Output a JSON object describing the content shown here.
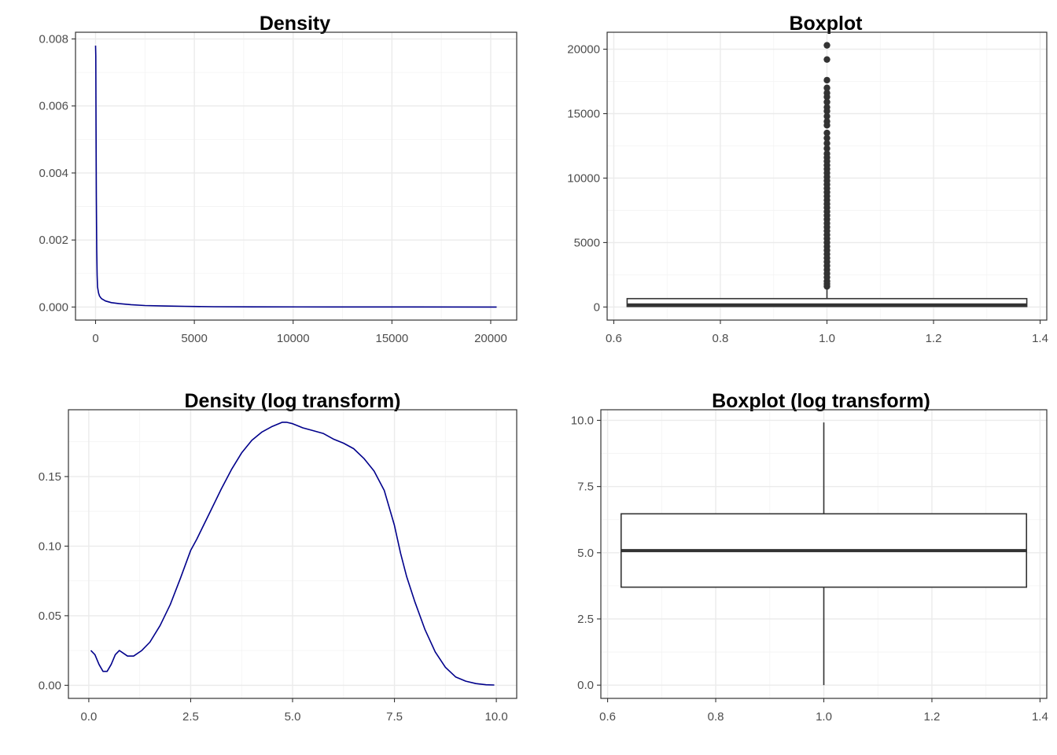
{
  "chart_data": [
    {
      "id": "density",
      "type": "line",
      "title": "Density",
      "xlabel": "",
      "ylabel": "",
      "xlim": [
        -1015,
        21315
      ],
      "ylim": [
        -0.00039,
        0.0082
      ],
      "xticks": [
        0,
        5000,
        10000,
        15000,
        20000
      ],
      "xtick_labels": [
        "0",
        "5000",
        "10000",
        "15000",
        "20000"
      ],
      "yticks": [
        0,
        0.002,
        0.004,
        0.006,
        0.008
      ],
      "ytick_labels": [
        "0.000",
        "0.002",
        "0.004",
        "0.006",
        "0.008"
      ],
      "grid": true,
      "series": [
        {
          "color": "#00008B",
          "x": [
            0,
            10,
            25,
            40,
            60,
            80,
            100,
            150,
            200,
            300,
            500,
            800,
            1200,
            1800,
            2500,
            3500,
            4500,
            6000,
            8000,
            12000,
            16000,
            20300
          ],
          "y": [
            0.0078,
            0.0075,
            0.0055,
            0.0033,
            0.0017,
            0.00095,
            0.0006,
            0.00042,
            0.00033,
            0.00025,
            0.00018,
            0.00013,
            0.0001,
            7e-05,
            4.5e-05,
            3e-05,
            2e-05,
            1e-05,
            5e-06,
            2e-06,
            1e-06,
            5e-07
          ]
        }
      ]
    },
    {
      "id": "boxplot",
      "type": "boxplot",
      "title": "Boxplot",
      "xlabel": "",
      "ylabel": "",
      "xlim": [
        0.5875,
        1.4125
      ],
      "ylim": [
        -1015,
        21315
      ],
      "xticks": [
        0.6,
        0.8,
        1.0,
        1.2,
        1.4
      ],
      "xtick_labels": [
        "0.6",
        "0.8",
        "1.0",
        "1.2",
        "1.4"
      ],
      "yticks": [
        0,
        5000,
        10000,
        15000,
        20000
      ],
      "ytick_labels": [
        "0",
        "5000",
        "10000",
        "15000",
        "20000"
      ],
      "grid": true,
      "box": {
        "x": 1.0,
        "x_range": [
          0.625,
          1.375
        ],
        "q1": 40,
        "median": 160,
        "q3": 650,
        "whisker_low": 1,
        "whisker_high": 1500
      },
      "outliers": [
        20300,
        19200,
        17600,
        17000,
        16600,
        16300,
        15900,
        15500,
        15200,
        14800,
        14400,
        14100,
        13500,
        13100,
        12700,
        12300,
        11900,
        11600,
        11300,
        11000,
        10700,
        10400,
        10100,
        9800,
        9500,
        9200,
        8900,
        8600,
        8300,
        8000,
        7700,
        7400,
        7100,
        6800,
        6500,
        6200,
        5900,
        5600,
        5300,
        5000,
        4700,
        4400,
        4100,
        3800,
        3500,
        3200,
        2900,
        2600,
        2300,
        2000,
        1800,
        1600
      ]
    },
    {
      "id": "density-log",
      "type": "line",
      "title": "Density (log transform)",
      "xlabel": "",
      "ylabel": "",
      "xlim": [
        -0.5,
        10.5
      ],
      "ylim": [
        -0.0094,
        0.198
      ],
      "xticks": [
        0,
        2.5,
        5,
        7.5,
        10
      ],
      "xtick_labels": [
        "0.0",
        "2.5",
        "5.0",
        "7.5",
        "10.0"
      ],
      "yticks": [
        0,
        0.05,
        0.1,
        0.15
      ],
      "ytick_labels": [
        "0.00",
        "0.05",
        "0.10",
        "0.15"
      ],
      "grid": true,
      "series": [
        {
          "color": "#00008B",
          "x": [
            0.05,
            0.15,
            0.25,
            0.35,
            0.45,
            0.55,
            0.65,
            0.75,
            0.85,
            0.95,
            1.1,
            1.3,
            1.5,
            1.75,
            2.0,
            2.25,
            2.5,
            2.65,
            2.8,
            3.0,
            3.25,
            3.5,
            3.75,
            4.0,
            4.25,
            4.5,
            4.75,
            4.85,
            5.0,
            5.25,
            5.5,
            5.75,
            6.0,
            6.25,
            6.5,
            6.75,
            7.0,
            7.25,
            7.5,
            7.65,
            7.8,
            8.0,
            8.25,
            8.5,
            8.75,
            9.0,
            9.25,
            9.5,
            9.75,
            9.95
          ],
          "y": [
            0.025,
            0.022,
            0.015,
            0.01,
            0.01,
            0.015,
            0.022,
            0.025,
            0.023,
            0.021,
            0.021,
            0.025,
            0.031,
            0.043,
            0.058,
            0.077,
            0.097,
            0.105,
            0.114,
            0.126,
            0.141,
            0.155,
            0.167,
            0.176,
            0.182,
            0.186,
            0.189,
            0.189,
            0.188,
            0.185,
            0.183,
            0.181,
            0.177,
            0.174,
            0.17,
            0.163,
            0.154,
            0.14,
            0.115,
            0.095,
            0.078,
            0.06,
            0.04,
            0.024,
            0.013,
            0.006,
            0.003,
            0.0012,
            0.0004,
            0.0002
          ]
        }
      ]
    },
    {
      "id": "boxplot-log",
      "type": "boxplot",
      "title": "Boxplot (log transform)",
      "xlabel": "",
      "ylabel": "",
      "xlim": [
        0.5875,
        1.4125
      ],
      "ylim": [
        -0.5,
        10.4
      ],
      "xticks": [
        0.6,
        0.8,
        1.0,
        1.2,
        1.4
      ],
      "xtick_labels": [
        "0.6",
        "0.8",
        "1.0",
        "1.2",
        "1.4"
      ],
      "yticks": [
        0,
        2.5,
        5,
        7.5,
        10
      ],
      "ytick_labels": [
        "0.0",
        "2.5",
        "5.0",
        "7.5",
        "10.0"
      ],
      "grid": true,
      "box": {
        "x": 1.0,
        "x_range": [
          0.625,
          1.375
        ],
        "q1": 3.7,
        "median": 5.08,
        "q3": 6.47,
        "whisker_low": 0.0,
        "whisker_high": 9.92
      },
      "outliers": []
    }
  ]
}
